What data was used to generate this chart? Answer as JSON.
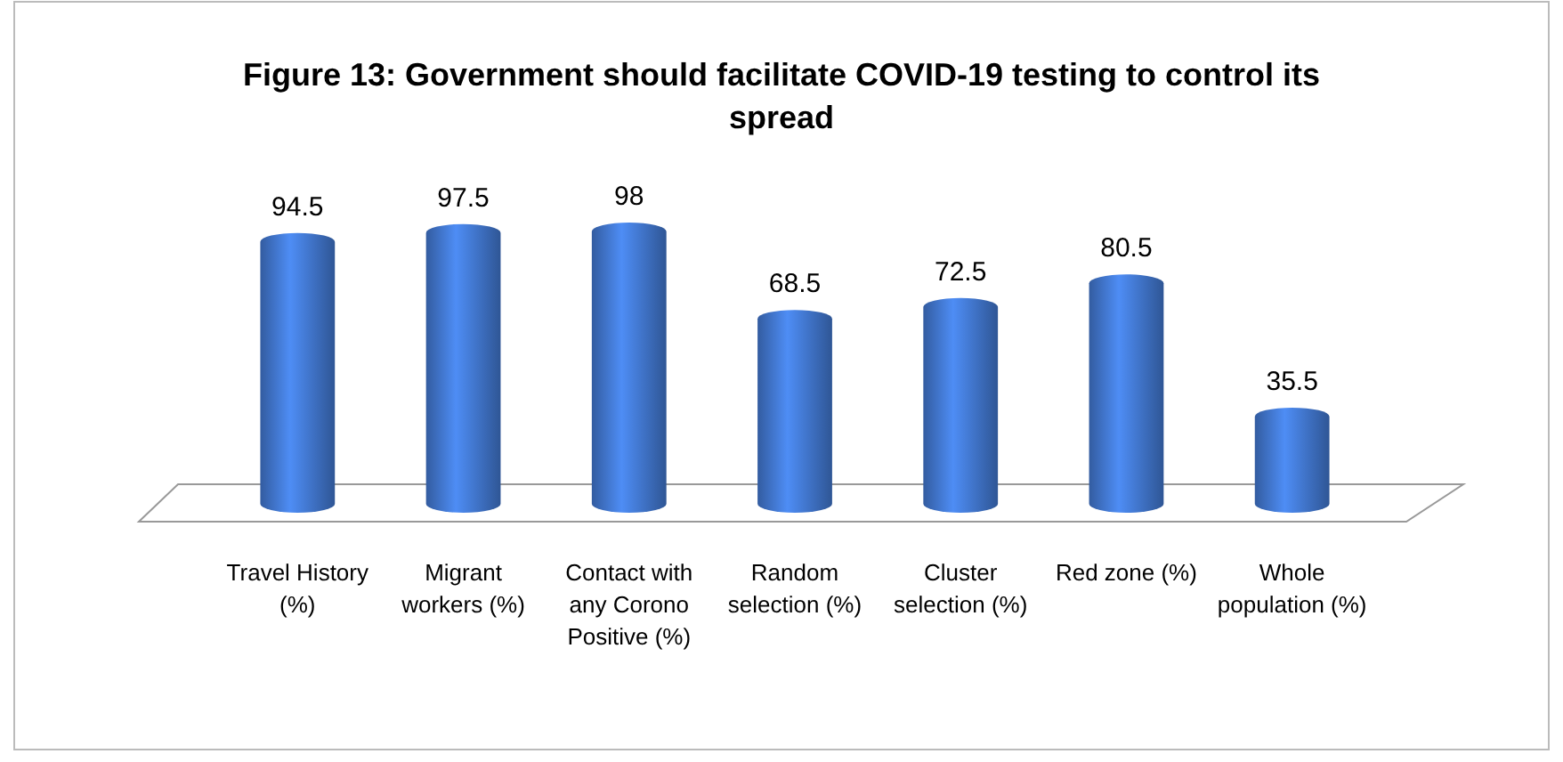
{
  "chart_data": {
    "type": "bar",
    "title": "Figure 13: Government should facilitate COVID-19 testing to control its spread",
    "categories": [
      "Travel History (%)",
      "Migrant workers (%)",
      "Contact with any Corono Positive (%)",
      "Random selection (%)",
      "Cluster selection (%)",
      "Red zone (%)",
      "Whole population (%)"
    ],
    "values": [
      94.5,
      97.5,
      98,
      68.5,
      72.5,
      80.5,
      35.5
    ],
    "color": "#3f72c6",
    "data_labels": true
  }
}
